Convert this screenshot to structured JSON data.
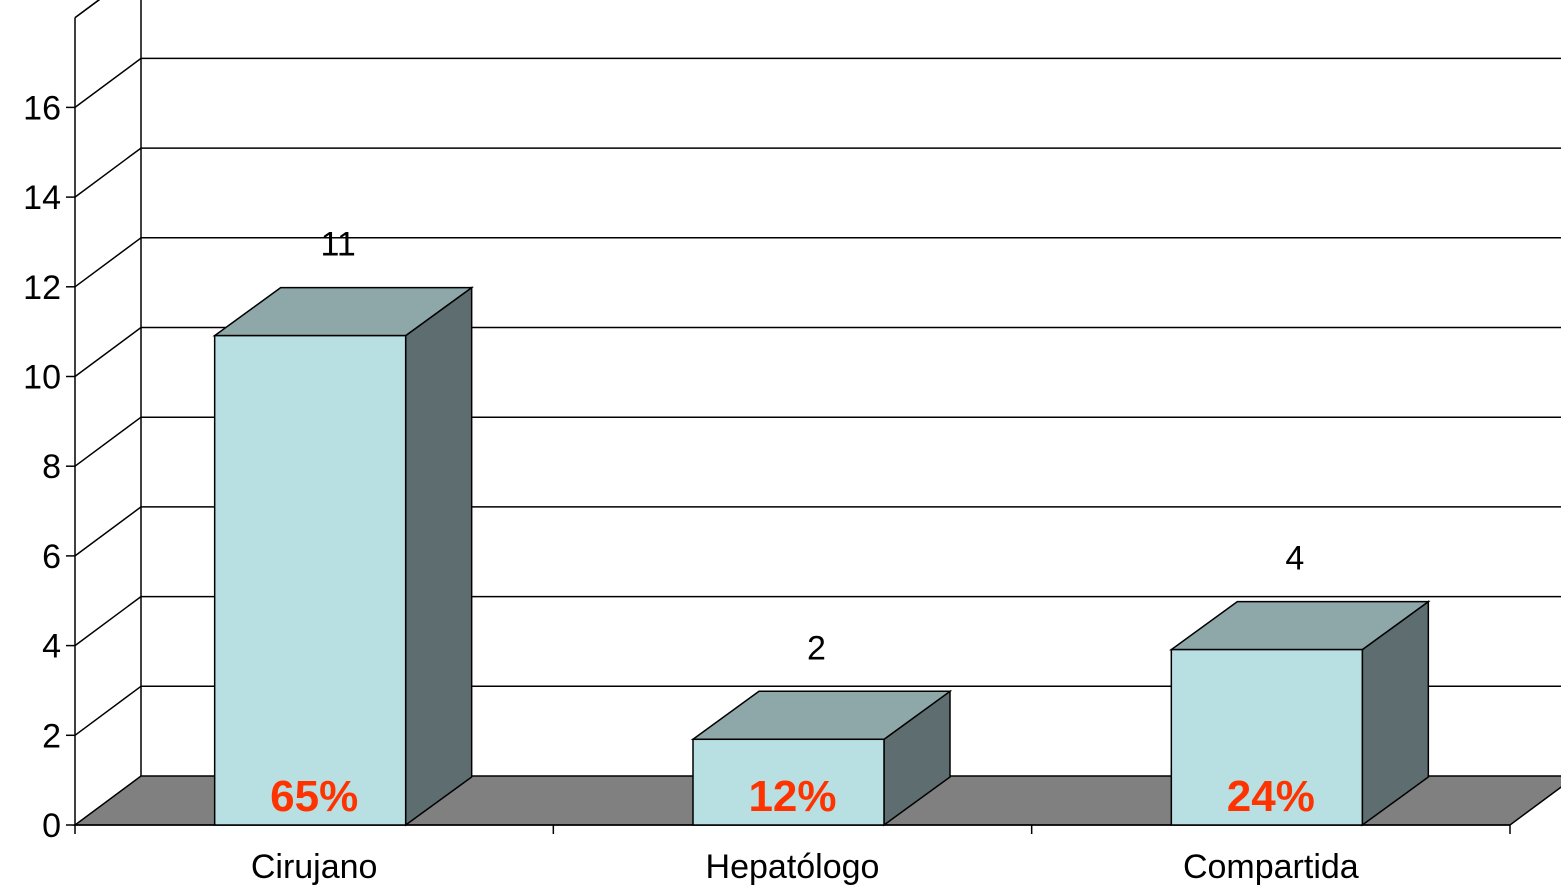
{
  "chart_data": {
    "type": "bar",
    "style": "3d-column",
    "categories": [
      "Cirujano",
      "Hepatólogo",
      "Compartida"
    ],
    "values": [
      11,
      2,
      4
    ],
    "data_labels": [
      "11",
      "2",
      "4"
    ],
    "percent_labels": [
      "65%",
      "12%",
      "24%"
    ],
    "y_ticks": [
      "0",
      "2",
      "4",
      "6",
      "8",
      "10",
      "12",
      "14",
      "16"
    ],
    "ylim": [
      0,
      18
    ],
    "grid": true,
    "legend": "none",
    "colors": {
      "bar_front": "#b8dfe2",
      "bar_top": "#8ea7a9",
      "bar_side": "#5e6e70",
      "floor": "#808080",
      "percent_text": "#ff3300",
      "line": "#000000"
    }
  }
}
